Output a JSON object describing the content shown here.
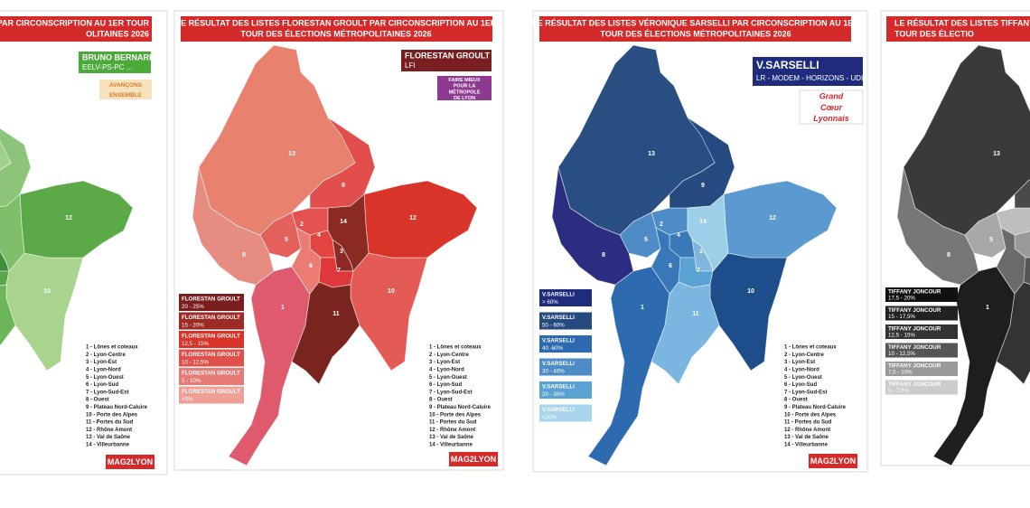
{
  "districts": [
    "1 - Lônes et coteaux",
    "2 - Lyon-Centre",
    "3 - Lyon-Est",
    "4 - Lyon-Nord",
    "5 - Lyon-Ouest",
    "6 - Lyon-Sud",
    "7 - Lyon-Sud-Est",
    "8 - Ouest",
    "9 - Plateau Nord-Caluire",
    "10 - Porte des Alpes",
    "11 - Portes du Sud",
    "12 - Rhône Amont",
    "13 - Val de Saône",
    "14 - Villeurbanne"
  ],
  "brand": "MAG2LYON",
  "panels": [
    {
      "title": [
        "PAR CIRCONSCRIPTION AU 1ER TOUR",
        "OLITAINES 2026"
      ],
      "candidate": {
        "name": "BRUNO BERNARD",
        "party": "EELV-PS-PC ...",
        "color": "#4caa3a"
      },
      "logo": {
        "text": [
          "AVANÇONS",
          "ENSEMBLE"
        ],
        "color": "#f6e3bd",
        "text_color": "#e07a2a"
      },
      "fills": [
        "#5da94a",
        "#7cbc68",
        "#3f8f3a",
        "#4e9e42",
        "#2e7d32",
        "#3d8b3a",
        "#5aa64a",
        "#6ab35a",
        "#8cc47a",
        "#a8d48e",
        "#6cb558",
        "#5caa47",
        "#9fcf8a",
        "#7fbf6a"
      ],
      "map_labels": [
        "12",
        "10"
      ],
      "legend": [],
      "district_list": true
    },
    {
      "title": [
        "LE RÉSULTAT DES LISTES FLORESTAN GROULT PAR CIRCONSCRIPTION AU 1ER",
        "TOUR DES ÉLECTIONS MÉTROPOLITAINES 2026"
      ],
      "candidate": {
        "name": "FLORESTAN GROULT",
        "party": "LFI",
        "color": "#7a1f1f"
      },
      "logo": {
        "text": [
          "FAIRE MIEUX",
          "POUR LA",
          "MÉTROPOLE",
          "DE LYON"
        ],
        "color": "#8e3a90",
        "text_color": "#ffffff"
      },
      "fills": [
        "#df5a6c",
        "#e3524f",
        "#8b2a25",
        "#e2443f",
        "#e4605a",
        "#ea7c73",
        "#e0383a",
        "#e78c80",
        "#e24e4c",
        "#e45a55",
        "#7a2420",
        "#d9342a",
        "#e8826f",
        "#8a2a22"
      ],
      "map_labels": [
        "13",
        "9",
        "2",
        "14",
        "12",
        "5",
        "4",
        "3",
        "8",
        "6",
        "7",
        "10",
        "1",
        "11"
      ],
      "legend": [
        {
          "name": "FLORESTAN GROULT",
          "range": "20 - 25%",
          "color": "#7a1f1f"
        },
        {
          "name": "FLORESTAN GROULT",
          "range": "15 - 20%",
          "color": "#9e2a25"
        },
        {
          "name": "FLORESTAN GROULT",
          "range": "12,5 - 15%",
          "color": "#d9342a"
        },
        {
          "name": "FLORESTAN GROULT",
          "range": "10 - 12,5%",
          "color": "#e0514c"
        },
        {
          "name": "FLORESTAN GROULT",
          "range": "5 - 10%",
          "color": "#e67b75"
        },
        {
          "name": "FLORESTAN GROULT",
          "range": "<5%",
          "color": "#ee9f96"
        }
      ],
      "district_list": true
    },
    {
      "title": [
        "LE RÉSULTAT DES LISTES VÉRONIQUE SARSELLI PAR CIRCONSCRIPTION AU 1ER",
        "TOUR DES ÉLECTIONS MÉTROPOLITAINES 2026"
      ],
      "candidate": {
        "name": "V.SARSELLI",
        "party": "LR - MODEM - HORIZONS - UDI...",
        "color": "#1f2c7e"
      },
      "logo": {
        "text": [
          "Grand",
          "Cœur",
          "Lyonnais"
        ],
        "color": "#ffffff",
        "text_color": "#d4282f"
      },
      "fills": [
        "#2e6ab0",
        "#4d8cc6",
        "#7fb6de",
        "#3a7ab8",
        "#4d8cc6",
        "#3878b8",
        "#5ba2d4",
        "#2a2d80",
        "#264a80",
        "#1e4d8c",
        "#7ab6e0",
        "#5a9ad0",
        "#284e82",
        "#9ccfe8"
      ],
      "map_labels": [
        "13",
        "9",
        "2",
        "14",
        "12",
        "5",
        "4",
        "3",
        "8",
        "6",
        "7",
        "10",
        "1",
        "11"
      ],
      "legend": [
        {
          "name": "V.SARSELLI",
          "range": "> 60%",
          "color": "#1f2c7e"
        },
        {
          "name": "V.SARSELLI",
          "range": "50 - 60%",
          "color": "#264a80"
        },
        {
          "name": "V.SARSELLI",
          "range": "40 -60%",
          "color": "#2e6ab0"
        },
        {
          "name": "V.SARSELLI",
          "range": "30 - 40%",
          "color": "#4d8cc6"
        },
        {
          "name": "V.SARSELLI",
          "range": "20 - 30%",
          "color": "#5ba2d4"
        },
        {
          "name": "V.SARSELLI",
          "range": "<20%",
          "color": "#a8d4ee"
        }
      ],
      "district_list": true
    },
    {
      "title": [
        "LE RÉSULTAT DES LISTES TIFFANY",
        "TOUR DES ÉLECTIO"
      ],
      "fills": [
        "#1e1e1e",
        "#bdbdbd",
        "#8a8a8a",
        "#9a9a9a",
        "#a8a8a8",
        "#6a6a6a",
        "#555555",
        "#777777",
        "#4a4a4a",
        "#2a2a2a",
        "#333333",
        "#bbbbbb",
        "#3a3a3a",
        "#dddddd"
      ],
      "map_labels": [
        "13",
        "8",
        "5",
        "1"
      ],
      "legend": [
        {
          "name": "TIFFANY JONCOUR",
          "range": "17,5 - 20%",
          "color": "#111111"
        },
        {
          "name": "TIFFANY JONCOUR",
          "range": "15 - 17,5%",
          "color": "#222222"
        },
        {
          "name": "TIFFANY JONCOUR",
          "range": "12,5 - 15%",
          "color": "#333333"
        },
        {
          "name": "TIFFANY JONCOUR",
          "range": "10 - 12,5%",
          "color": "#555555"
        },
        {
          "name": "TIFFANY JONCOUR",
          "range": "7,5 - 10%",
          "color": "#999999"
        },
        {
          "name": "TIFFANY JONCOUR",
          "range": "5 - 7,5%",
          "color": "#cccccc"
        }
      ],
      "district_list": false
    }
  ]
}
